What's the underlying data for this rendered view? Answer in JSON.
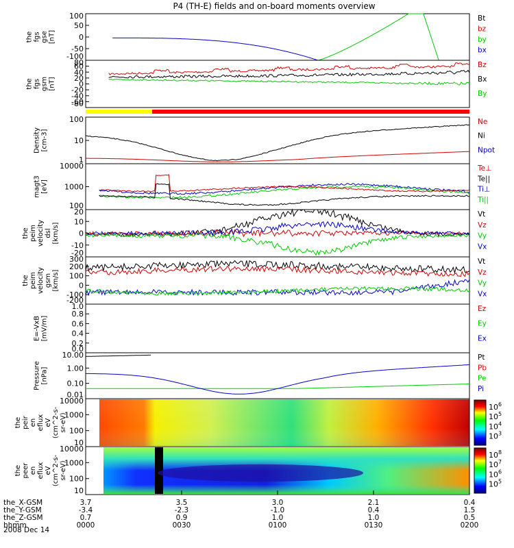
{
  "title": "P4 (TH-E) fields and on-board moments overview",
  "colors": {
    "black": "#000000",
    "red": "#d40000",
    "green": "#00cc00",
    "blue": "#0000cc",
    "yellow": "#ffff00"
  },
  "orbit": {
    "rows": [
      {
        "label": "the_X-GSM",
        "values": [
          "3.7",
          "3.5",
          "3.0",
          "2.1",
          "0.4"
        ]
      },
      {
        "label": "the_Y-GSM",
        "values": [
          "-3.4",
          "-2.3",
          "-1.0",
          "0.4",
          "1.5"
        ]
      },
      {
        "label": "the_Z-GSM",
        "values": [
          "0.7",
          "0.9",
          "1.0",
          "1.0",
          "0.5"
        ]
      },
      {
        "label": "hhmm",
        "values": [
          "0000",
          "0030",
          "0100",
          "0130",
          "0200"
        ]
      }
    ],
    "date": "2008 Dec 14"
  },
  "chart_data": {
    "type": "line",
    "time_range": [
      "0000",
      "0200"
    ],
    "panels": [
      {
        "id": "fgs-gse",
        "ylabel": [
          "the",
          "fgs",
          "gse",
          "[nT]"
        ],
        "yticks": [
          "100",
          "50",
          "0",
          "-50",
          "-100"
        ],
        "ylim": [
          -100,
          100
        ],
        "legend": [
          {
            "text": "Bt",
            "color": "#000000"
          },
          {
            "text": "bz",
            "color": "#d40000"
          },
          {
            "text": "by",
            "color": "#00cc00"
          },
          {
            "text": "bx",
            "color": "#0000cc"
          }
        ]
      },
      {
        "id": "fgs-gsm",
        "ylabel": [
          "the",
          "fgs",
          "gsm",
          "[nT]"
        ],
        "yticks": [
          "80",
          "60",
          "40",
          "20",
          "0",
          "-20",
          "-40",
          "-60",
          "-80"
        ],
        "ylim": [
          -80,
          80
        ],
        "legend": [
          {
            "text": "Bz",
            "color": "#d40000"
          },
          {
            "text": "Bx",
            "color": "#000000"
          },
          {
            "text": "By",
            "color": "#00cc00"
          }
        ]
      },
      {
        "id": "density",
        "ylabel": [
          "Density",
          "[cm-3]"
        ],
        "yticks": [
          "100",
          "10",
          "1"
        ],
        "scale": "log",
        "legend": [
          {
            "text": "Ne",
            "color": "#d40000"
          },
          {
            "text": "Ni",
            "color": "#000000"
          },
          {
            "text": "Npot",
            "color": "#0000cc"
          }
        ]
      },
      {
        "id": "temperature",
        "ylabel": [
          "magt3",
          "[eV]"
        ],
        "yticks": [
          "10000",
          "1000",
          "100"
        ],
        "scale": "log",
        "legend": [
          {
            "text": "Te⊥",
            "color": "#d40000"
          },
          {
            "text": "Te||",
            "color": "#000000"
          },
          {
            "text": "Ti⊥",
            "color": "#0000cc"
          },
          {
            "text": "Ti||",
            "color": "#00cc00"
          }
        ]
      },
      {
        "id": "peim-dsl",
        "ylabel": [
          "the",
          "peim",
          "velocity",
          "dsl",
          "[km/s]"
        ],
        "yticks": [
          "20",
          "10",
          "0",
          "-10",
          "-20"
        ],
        "ylim": [
          -20,
          20
        ],
        "legend": [
          {
            "text": "Vt",
            "color": "#000000"
          },
          {
            "text": "Vz",
            "color": "#d40000"
          },
          {
            "text": "Vy",
            "color": "#00cc00"
          },
          {
            "text": "Vx",
            "color": "#0000cc"
          }
        ]
      },
      {
        "id": "peim-gsm",
        "ylabel": [
          "the",
          "peim",
          "velocity",
          "gsm",
          "[km/s]"
        ],
        "yticks": [
          "300",
          "200",
          "100",
          "0",
          "-100",
          "-200"
        ],
        "ylim": [
          -200,
          300
        ],
        "legend": [
          {
            "text": "Vt",
            "color": "#000000"
          },
          {
            "text": "Vz",
            "color": "#d40000"
          },
          {
            "text": "Vy",
            "color": "#00cc00"
          },
          {
            "text": "Vx",
            "color": "#0000cc"
          }
        ]
      },
      {
        "id": "efield",
        "ylabel": [
          "E=-VxB",
          "[mV/m]"
        ],
        "yticks": [
          "1.0",
          "0.8",
          "0.6",
          "0.4",
          "0.2",
          "0.0"
        ],
        "ylim": [
          0,
          1
        ],
        "legend": [
          {
            "text": "Ez",
            "color": "#d40000"
          },
          {
            "text": "Ey",
            "color": "#00cc00"
          },
          {
            "text": "Ex",
            "color": "#0000cc"
          }
        ]
      },
      {
        "id": "pressure",
        "ylabel": [
          "Pressure",
          "[nPa]"
        ],
        "yticks": [
          "10.00",
          "1.00",
          "0.10",
          "0.01"
        ],
        "scale": "log",
        "legend": [
          {
            "text": "Pt",
            "color": "#000000"
          },
          {
            "text": "Pb",
            "color": "#d40000"
          },
          {
            "text": "Pe",
            "color": "#00cc00"
          },
          {
            "text": "Pi",
            "color": "#0000cc"
          }
        ]
      },
      {
        "id": "peir-spec",
        "type": "heatmap",
        "ylabel": [
          "the",
          "peir",
          "en",
          "eflux",
          "eV",
          "(cm^2-s-",
          "sr-eV)"
        ],
        "yticks": [
          "10000",
          "1000",
          "100",
          "10"
        ],
        "colorbar_ticks": [
          "10^6",
          "10^5",
          "10^4",
          "10^3"
        ]
      },
      {
        "id": "peer-spec",
        "type": "heatmap",
        "ylabel": [
          "the",
          "peer",
          "en",
          "eflux",
          "eV",
          "(cm^2-s-",
          "sr-eV)"
        ],
        "yticks": [
          "10000",
          "1000",
          "100",
          "10"
        ],
        "colorbar_ticks": [
          "10^8",
          "10^7",
          "10^6",
          "10^5"
        ]
      }
    ]
  }
}
